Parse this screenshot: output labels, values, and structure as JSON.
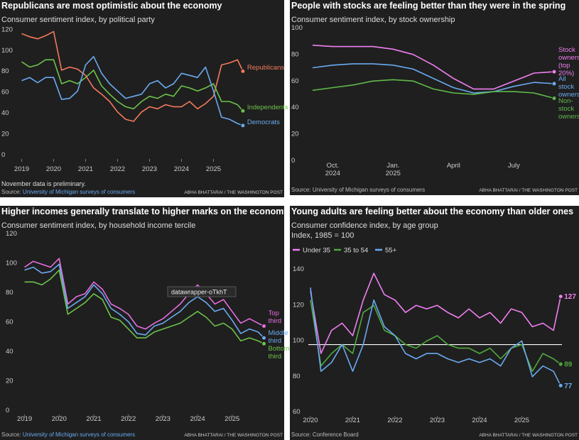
{
  "chart_data": [
    {
      "type": "line",
      "title": "Republicans are most optimistic about the economy",
      "subtitle": "Consumer sentiment index, by political party",
      "note": "November data is preliminary.",
      "source_prefix": "Source:",
      "source": "University of Michigan surveys of consumers",
      "credit": "ABHA BHATTARAI / THE WASHINGTON POST",
      "x": [
        2019,
        2019.25,
        2019.5,
        2019.75,
        2020,
        2020.25,
        2020.5,
        2020.75,
        2021,
        2021.25,
        2021.5,
        2021.75,
        2022,
        2022.25,
        2022.5,
        2022.75,
        2023,
        2023.25,
        2023.5,
        2023.75,
        2024,
        2024.25,
        2024.5,
        2024.75,
        2025,
        2025.25,
        2025.5,
        2025.75,
        2025.92
      ],
      "xlim": [
        2018.7,
        2026.1
      ],
      "xticks": [
        2019,
        2020,
        2021,
        2022,
        2023,
        2024,
        2025
      ],
      "ylim": [
        0,
        125
      ],
      "yticks": [
        0,
        20,
        40,
        60,
        80,
        100,
        120
      ],
      "series": [
        {
          "name": "Republicans",
          "color": "#f4795b",
          "values": [
            120,
            117,
            115,
            118,
            122,
            85,
            88,
            86,
            80,
            68,
            62,
            55,
            45,
            38,
            36,
            45,
            50,
            48,
            52,
            50,
            50,
            55,
            48,
            53,
            60,
            90,
            92,
            95,
            84
          ]
        },
        {
          "name": "Independents",
          "color": "#6cc24a",
          "values": [
            93,
            88,
            90,
            95,
            95,
            72,
            75,
            72,
            78,
            85,
            70,
            62,
            55,
            50,
            48,
            55,
            60,
            58,
            62,
            60,
            70,
            68,
            65,
            68,
            72,
            55,
            55,
            52,
            46
          ]
        },
        {
          "name": "Democrats",
          "color": "#6aaaf0",
          "values": [
            75,
            78,
            73,
            78,
            78,
            57,
            58,
            65,
            90,
            98,
            82,
            72,
            65,
            58,
            60,
            62,
            72,
            75,
            68,
            72,
            82,
            80,
            78,
            88,
            65,
            40,
            38,
            34,
            32
          ]
        }
      ]
    },
    {
      "type": "line",
      "title": "People with stocks are feeling better than they were in the spring",
      "subtitle": "Consumer sentiment index, by stock ownership",
      "source_prefix": "Source:",
      "source": "University of Michigan surveys of consumers",
      "credit": "ABHA BHATTARAI / THE WASHINGTON POST",
      "categories": [
        null,
        "Oct. 2024",
        null,
        null,
        "Jan. 2025",
        null,
        null,
        "April",
        null,
        null,
        "July",
        null,
        null
      ],
      "ylim": [
        0,
        100
      ],
      "yticks": [
        0,
        20,
        40,
        60,
        80,
        100
      ],
      "series": [
        {
          "name": "Stock owners (top 20%)",
          "color": "#f07ff0",
          "values": [
            90,
            89,
            89,
            89,
            87,
            83,
            75,
            65,
            57,
            57,
            63,
            69,
            70
          ]
        },
        {
          "name": "All stock owners",
          "color": "#6aaaf0",
          "values": [
            73,
            75,
            76,
            76,
            75,
            72,
            65,
            58,
            54,
            55,
            59,
            62,
            61
          ]
        },
        {
          "name": "Non-stock owners",
          "color": "#5fb94a",
          "values": [
            56,
            58,
            60,
            63,
            64,
            63,
            57,
            54,
            53,
            55,
            55,
            54,
            50
          ]
        }
      ]
    },
    {
      "type": "line",
      "title": "Higher incomes generally translate to higher marks on the economy",
      "subtitle": "Consumer sentiment index, by household income tercile",
      "annotation": "datawrapper-oTkhT",
      "source_prefix": "Source:",
      "source": "University of Michigan surveys of consumers",
      "credit": "ABHA BHATTARAI / THE WASHINGTON POST",
      "x": [
        2019,
        2019.25,
        2019.5,
        2019.75,
        2020,
        2020.25,
        2020.5,
        2020.75,
        2021,
        2021.25,
        2021.5,
        2021.75,
        2022,
        2022.25,
        2022.5,
        2022.75,
        2023,
        2023.25,
        2023.5,
        2023.75,
        2024,
        2024.25,
        2024.5,
        2024.75,
        2025,
        2025.25,
        2025.5,
        2025.75,
        2025.92
      ],
      "xlim": [
        2018.7,
        2025.95
      ],
      "xticks": [
        2019,
        2020,
        2021,
        2022,
        2023,
        2024,
        2025
      ],
      "ylim": [
        0,
        120
      ],
      "yticks": [
        0,
        20,
        40,
        60,
        80,
        100,
        120
      ],
      "series": [
        {
          "name": "Top third",
          "color": "#e66de0",
          "values": [
            100,
            104,
            102,
            100,
            106,
            75,
            80,
            82,
            90,
            85,
            75,
            72,
            68,
            60,
            58,
            62,
            65,
            70,
            75,
            82,
            88,
            82,
            75,
            78,
            70,
            62,
            65,
            62,
            60
          ]
        },
        {
          "name": "Middle third",
          "color": "#6aaaf0",
          "values": [
            98,
            100,
            96,
            97,
            102,
            72,
            76,
            80,
            88,
            82,
            72,
            68,
            63,
            55,
            54,
            60,
            62,
            66,
            70,
            76,
            80,
            76,
            70,
            72,
            64,
            55,
            58,
            56,
            52
          ]
        },
        {
          "name": "Bottom third",
          "color": "#6cc24a",
          "values": [
            90,
            90,
            88,
            92,
            98,
            68,
            72,
            76,
            82,
            78,
            66,
            64,
            58,
            52,
            52,
            56,
            58,
            60,
            62,
            66,
            70,
            66,
            60,
            62,
            58,
            50,
            52,
            50,
            48
          ]
        }
      ]
    },
    {
      "type": "line",
      "title": "Young adults are feeling better about the economy than older ones",
      "subtitle": "Consumer confidence index, by age group",
      "index_note": "Index, 1985 = 100",
      "source_prefix": "Source:",
      "source": "Conference Board",
      "credit": "ABHA BHATTARAI / THE WASHINGTON POST",
      "x": [
        2020,
        2020.25,
        2020.5,
        2020.75,
        2021,
        2021.25,
        2021.5,
        2021.75,
        2022,
        2022.25,
        2022.5,
        2022.75,
        2023,
        2023.25,
        2023.5,
        2023.75,
        2024,
        2024.25,
        2024.5,
        2024.75,
        2025,
        2025.25,
        2025.5,
        2025.75,
        2025.92
      ],
      "xlim": [
        2019.95,
        2025.95
      ],
      "xticks": [
        2020,
        2021,
        2022,
        2023,
        2024,
        2025
      ],
      "ylim": [
        60,
        148
      ],
      "yticks": [
        60,
        80,
        100,
        120,
        140
      ],
      "reference_line": 100,
      "end_labels": true,
      "series": [
        {
          "name": "Under 35",
          "color": "#f07ff0",
          "values": [
            130,
            95,
            108,
            112,
            105,
            125,
            140,
            128,
            125,
            118,
            122,
            120,
            122,
            118,
            115,
            120,
            115,
            118,
            112,
            120,
            118,
            110,
            112,
            108,
            127
          ]
        },
        {
          "name": "35 to 54",
          "color": "#4fa83d",
          "values": [
            125,
            88,
            95,
            100,
            95,
            118,
            122,
            108,
            105,
            100,
            98,
            102,
            105,
            100,
            98,
            98,
            95,
            98,
            92,
            98,
            100,
            85,
            95,
            92,
            89
          ]
        },
        {
          "name": "55+",
          "color": "#6aaaf0",
          "values": [
            132,
            85,
            90,
            100,
            85,
            100,
            125,
            110,
            105,
            95,
            92,
            95,
            95,
            92,
            90,
            92,
            90,
            92,
            88,
            98,
            102,
            82,
            88,
            85,
            77
          ]
        }
      ]
    }
  ]
}
